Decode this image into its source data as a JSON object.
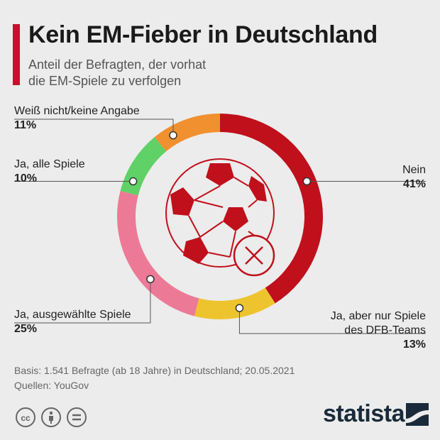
{
  "header": {
    "title": "Kein EM-Fieber in Deutschland",
    "subtitle_line1": "Anteil der Befragten, der vorhat",
    "subtitle_line2": "die EM-Spiele zu verfolgen"
  },
  "chart_data": {
    "type": "pie",
    "donut": true,
    "title": "Kein EM-Fieber in Deutschland",
    "subtitle": "Anteil der Befragten, der vorhat die EM-Spiele zu verfolgen",
    "slices": [
      {
        "label": "Nein",
        "value": 41,
        "value_label": "41%",
        "color": "#c0101c"
      },
      {
        "label": "Ja, aber nur Spiele des DFB-Teams",
        "label_line1": "Ja, aber nur Spiele",
        "label_line2": "des DFB-Teams",
        "value": 13,
        "value_label": "13%",
        "color": "#eec42e"
      },
      {
        "label": "Ja, ausgewählte Spiele",
        "value": 25,
        "value_label": "25%",
        "color": "#ec7a96"
      },
      {
        "label": "Ja, alle Spiele",
        "value": 10,
        "value_label": "10%",
        "color": "#5fd167"
      },
      {
        "label": "Weiß nicht/keine Angabe",
        "value": 11,
        "value_label": "11%",
        "color": "#f0902e"
      }
    ]
  },
  "colors": {
    "accent": "#c8102e",
    "brand": "#1a2a3a"
  },
  "icons": {
    "center": "soccer-ball-crossed-icon"
  },
  "footer": {
    "basis": "Basis: 1.541 Befragte (ab 18 Jahre) in Deutschland; 20.05.2021",
    "source": "Quellen: YouGov"
  },
  "brand": {
    "name": "statista"
  }
}
